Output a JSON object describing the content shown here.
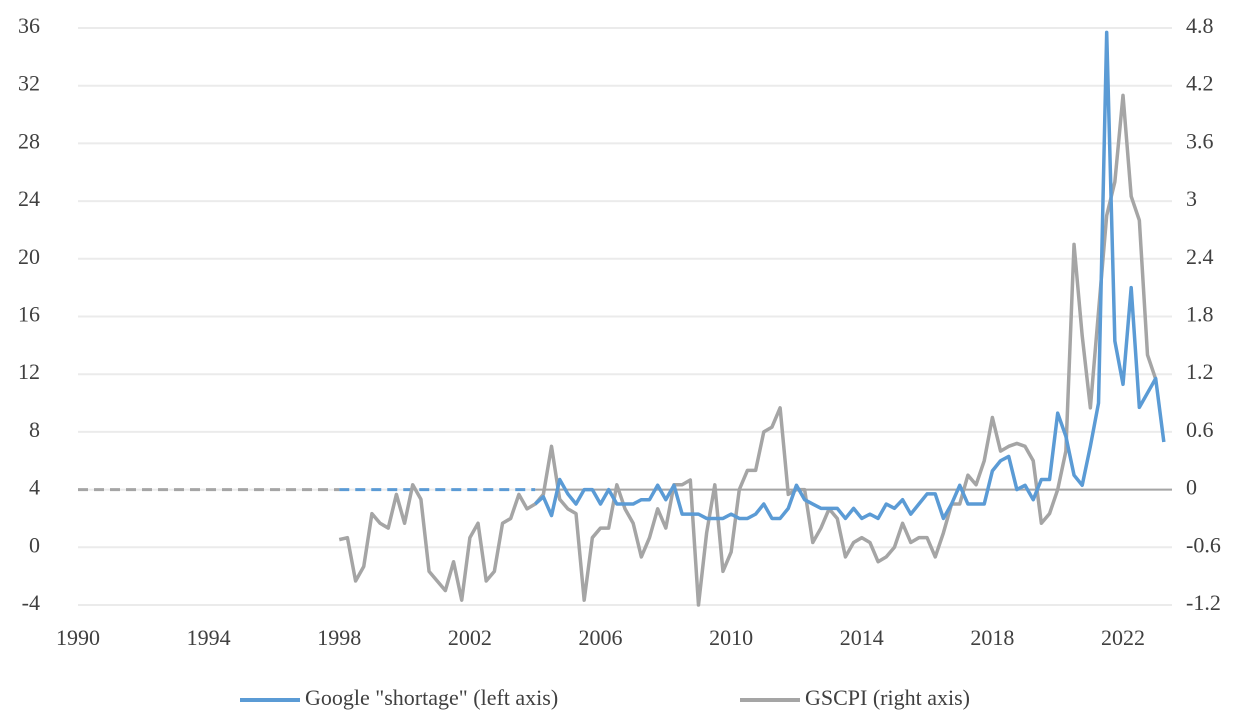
{
  "chart_data": {
    "type": "line",
    "x": [
      1998,
      1998.25,
      1998.5,
      1998.75,
      1999,
      1999.25,
      1999.5,
      1999.75,
      2000,
      2000.25,
      2000.5,
      2000.75,
      2001,
      2001.25,
      2001.5,
      2001.75,
      2002,
      2002.25,
      2002.5,
      2002.75,
      2003,
      2003.25,
      2003.5,
      2003.75,
      2004,
      2004.25,
      2004.5,
      2004.75,
      2005,
      2005.25,
      2005.5,
      2005.75,
      2006,
      2006.25,
      2006.5,
      2006.75,
      2007,
      2007.25,
      2007.5,
      2007.75,
      2008,
      2008.25,
      2008.5,
      2008.75,
      2009,
      2009.25,
      2009.5,
      2009.75,
      2010,
      2010.25,
      2010.5,
      2010.75,
      2011,
      2011.25,
      2011.5,
      2011.75,
      2012,
      2012.25,
      2012.5,
      2012.75,
      2013,
      2013.25,
      2013.5,
      2013.75,
      2014,
      2014.25,
      2014.5,
      2014.75,
      2015,
      2015.25,
      2015.5,
      2015.75,
      2016,
      2016.25,
      2016.5,
      2016.75,
      2017,
      2017.25,
      2017.5,
      2017.75,
      2018,
      2018.25,
      2018.5,
      2018.75,
      2019,
      2019.25,
      2019.5,
      2019.75,
      2020,
      2020.25,
      2020.5,
      2020.75,
      2021,
      2021.25,
      2021.5,
      2021.75,
      2022,
      2022.25,
      2022.5,
      2022.75,
      2023,
      2023.25,
      2023.5
    ],
    "series": [
      {
        "name": "Google \"shortage\" (left axis)",
        "color": "#5b9bd5",
        "axis": "y",
        "values": [
          null,
          null,
          null,
          null,
          null,
          null,
          null,
          null,
          null,
          null,
          null,
          null,
          null,
          null,
          null,
          null,
          null,
          null,
          null,
          null,
          null,
          null,
          null,
          null,
          3,
          3.5,
          2.2,
          4.7,
          3.7,
          3,
          4,
          4,
          3,
          4,
          3,
          3,
          3,
          3.3,
          3.3,
          4.3,
          3.3,
          4.3,
          2.3,
          2.3,
          2.3,
          2,
          2,
          2,
          2.3,
          2,
          2,
          2.3,
          3,
          2,
          2,
          2.7,
          4.3,
          3.3,
          3,
          2.7,
          2.7,
          2.7,
          2,
          2.7,
          2,
          2.3,
          2,
          3,
          2.7,
          3.3,
          2.3,
          3,
          3.7,
          3.7,
          2,
          3,
          4.3,
          3,
          3,
          3,
          5.3,
          6,
          6.3,
          4,
          4.3,
          3.3,
          4.7,
          4.7,
          9.3,
          7.7,
          5,
          4.3,
          7,
          10,
          35.7,
          14.3,
          11.3,
          18,
          9.7,
          10.7,
          11.7,
          7.3,
          null
        ]
      },
      {
        "name": "GSCPI (right axis)",
        "color": "#a5a5a5",
        "axis": "y2",
        "values": [
          -0.52,
          -0.5,
          -0.95,
          -0.8,
          -0.25,
          -0.35,
          -0.4,
          -0.05,
          -0.35,
          0.05,
          -0.1,
          -0.85,
          -0.95,
          -1.05,
          -0.75,
          -1.15,
          -0.5,
          -0.35,
          -0.95,
          -0.85,
          -0.35,
          -0.3,
          -0.05,
          -0.2,
          -0.15,
          -0.05,
          0.45,
          -0.1,
          -0.2,
          -0.25,
          -1.15,
          -0.5,
          -0.4,
          -0.4,
          0.05,
          -0.2,
          -0.35,
          -0.7,
          -0.5,
          -0.2,
          -0.4,
          0.05,
          0.05,
          0.1,
          -1.2,
          -0.45,
          0.05,
          -0.85,
          -0.65,
          0,
          0.2,
          0.2,
          0.6,
          0.65,
          0.85,
          -0.05,
          0,
          0,
          -0.55,
          -0.4,
          -0.2,
          -0.3,
          -0.7,
          -0.55,
          -0.5,
          -0.55,
          -0.75,
          -0.7,
          -0.6,
          -0.35,
          -0.55,
          -0.5,
          -0.5,
          -0.7,
          -0.45,
          -0.15,
          -0.15,
          0.15,
          0.05,
          0.3,
          0.75,
          0.4,
          0.45,
          0.48,
          0.45,
          0.3,
          -0.35,
          -0.25,
          0,
          0.4,
          2.55,
          1.6,
          0.85,
          1.85,
          2.85,
          3.2,
          4.1,
          3.05,
          2.8,
          1.4,
          1.15,
          null,
          null
        ]
      }
    ],
    "xlim": [
      1990,
      2023.5
    ],
    "xticks": [
      1990,
      1994,
      1998,
      2002,
      2006,
      2010,
      2014,
      2018,
      2022
    ],
    "ylim": [
      -4,
      36
    ],
    "yticks": [
      -4,
      0,
      4,
      8,
      12,
      16,
      20,
      24,
      28,
      32,
      36
    ],
    "y2lim": [
      -1.2,
      4.8
    ],
    "y2ticks": [
      -1.2,
      -0.6,
      0,
      0.6,
      1.2,
      1.8,
      2.4,
      3,
      3.6,
      4.2,
      4.8
    ],
    "grid": true,
    "legend": "bottom"
  }
}
